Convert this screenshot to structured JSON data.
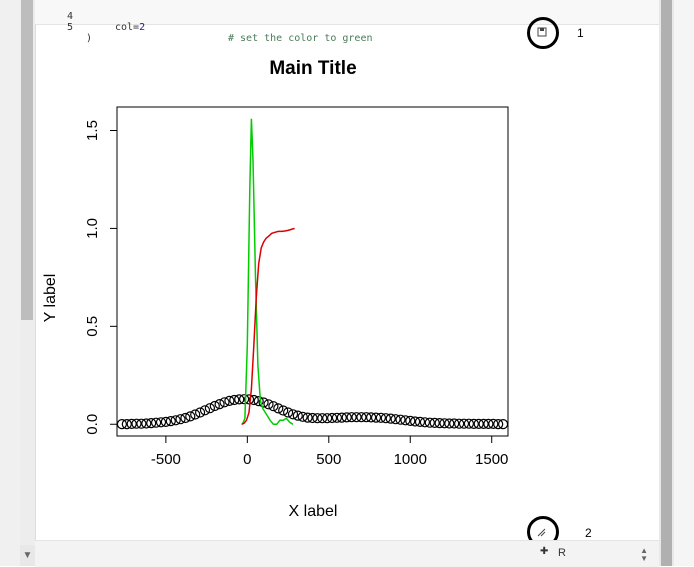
{
  "code": {
    "lines": [
      {
        "num": "4",
        "text": "col=",
        "value": "2",
        "comment": "# set the color to green"
      },
      {
        "num": "5",
        "text": ")"
      }
    ]
  },
  "plot_toolbar": {
    "save_icon": "floppy-disk-icon",
    "resize_icon": "resize-handle-icon"
  },
  "annotations": [
    "1",
    "2"
  ],
  "bottom_bar": {
    "language": "R"
  },
  "chart_data": {
    "type": "line",
    "title": "Main Title",
    "xlabel": "X label",
    "ylabel": "Y label",
    "xlim": [
      -800,
      1600
    ],
    "ylim": [
      -0.06,
      1.62
    ],
    "xticks": [
      -500,
      0,
      500,
      1000,
      1500
    ],
    "yticks": [
      0.0,
      0.5,
      1.0,
      1.5
    ],
    "xtick_labels": [
      "-500",
      "0",
      "500",
      "1000",
      "1500"
    ],
    "ytick_labels": [
      "0.0",
      "0.5",
      "1.0",
      "1.5"
    ],
    "grid": false,
    "legend": false,
    "series": [
      {
        "color": "#000000",
        "style": "points-open-circle",
        "x": [
          -770,
          -740,
          -710,
          -680,
          -650,
          -620,
          -590,
          -560,
          -530,
          -500,
          -470,
          -440,
          -410,
          -380,
          -350,
          -320,
          -290,
          -260,
          -230,
          -200,
          -170,
          -140,
          -110,
          -80,
          -50,
          -20,
          10,
          40,
          70,
          100,
          130,
          160,
          190,
          220,
          250,
          280,
          310,
          340,
          370,
          400,
          430,
          460,
          490,
          520,
          550,
          580,
          610,
          640,
          670,
          700,
          730,
          760,
          790,
          820,
          850,
          880,
          910,
          940,
          970,
          1000,
          1030,
          1060,
          1090,
          1120,
          1150,
          1180,
          1210,
          1240,
          1270,
          1300,
          1330,
          1360,
          1390,
          1420,
          1450,
          1480,
          1510,
          1540,
          1570
        ],
        "y": [
          0.001,
          0.001,
          0.002,
          0.003,
          0.003,
          0.004,
          0.006,
          0.008,
          0.01,
          0.012,
          0.016,
          0.02,
          0.026,
          0.032,
          0.04,
          0.05,
          0.06,
          0.071,
          0.082,
          0.093,
          0.103,
          0.112,
          0.119,
          0.124,
          0.127,
          0.128,
          0.127,
          0.124,
          0.118,
          0.111,
          0.102,
          0.092,
          0.081,
          0.07,
          0.06,
          0.051,
          0.044,
          0.038,
          0.034,
          0.032,
          0.031,
          0.031,
          0.031,
          0.032,
          0.033,
          0.034,
          0.035,
          0.036,
          0.036,
          0.036,
          0.036,
          0.035,
          0.034,
          0.033,
          0.031,
          0.029,
          0.026,
          0.023,
          0.02,
          0.017,
          0.014,
          0.012,
          0.01,
          0.008,
          0.007,
          0.006,
          0.005,
          0.004,
          0.004,
          0.003,
          0.003,
          0.003,
          0.002,
          0.002,
          0.002,
          0.002,
          0.002,
          0.001,
          0.001
        ]
      },
      {
        "color": "#00cc00",
        "style": "line",
        "x": [
          -30,
          -15,
          0,
          15,
          25,
          35,
          50,
          65,
          80,
          95,
          110,
          125,
          140,
          160,
          180,
          200,
          220,
          240,
          260,
          280
        ],
        "y": [
          0.0,
          0.03,
          0.4,
          1.2,
          1.56,
          1.35,
          0.75,
          0.3,
          0.12,
          0.08,
          0.06,
          0.04,
          0.02,
          0.0,
          0.0,
          0.02,
          0.02,
          0.03,
          0.01,
          0.0
        ]
      },
      {
        "color": "#dd0000",
        "style": "line",
        "x": [
          -35,
          -20,
          -5,
          10,
          25,
          40,
          55,
          70,
          85,
          100,
          115,
          130,
          150,
          170,
          190,
          210,
          230,
          250,
          270,
          290
        ],
        "y": [
          0.0,
          0.005,
          0.02,
          0.06,
          0.18,
          0.4,
          0.65,
          0.82,
          0.9,
          0.93,
          0.95,
          0.96,
          0.975,
          0.98,
          0.985,
          0.985,
          0.987,
          0.99,
          0.995,
          1.0
        ]
      }
    ]
  }
}
